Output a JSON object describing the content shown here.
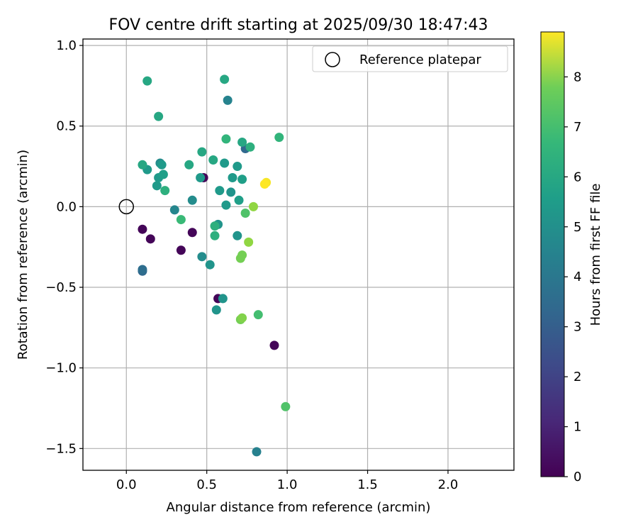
{
  "chart_data": {
    "type": "scatter",
    "title": "FOV centre drift starting at 2025/09/30 18:47:43",
    "xlabel": "Angular distance from reference (arcmin)",
    "ylabel": "Rotation from reference (arcmin)",
    "xlim": [
      -0.27,
      2.41
    ],
    "ylim": [
      -1.635,
      1.04
    ],
    "xticks": [
      0.0,
      0.5,
      1.0,
      1.5,
      2.0
    ],
    "xtick_labels": [
      "0.0",
      "0.5",
      "1.0",
      "1.5",
      "2.0"
    ],
    "yticks": [
      -1.5,
      -1.0,
      -0.5,
      0.0,
      0.5,
      1.0
    ],
    "ytick_labels": [
      "−1.5",
      "−1.0",
      "−0.5",
      "0.0",
      "0.5",
      "1.0"
    ],
    "grid": true,
    "legend": {
      "position": "top-right",
      "entries": [
        "Reference platepar"
      ]
    },
    "reference_point": {
      "x": 0.0,
      "y": 0.0,
      "label": "Reference platepar"
    },
    "colorbar": {
      "label": "Hours from first FF file",
      "colormap": "viridis",
      "range": [
        0,
        8.9
      ],
      "ticks": [
        0,
        1,
        2,
        3,
        4,
        5,
        6,
        7,
        8
      ],
      "tick_labels": [
        "0",
        "1",
        "2",
        "3",
        "4",
        "5",
        "6",
        "7",
        "8"
      ]
    },
    "points": [
      {
        "x": 0.1,
        "y": -0.14,
        "h": 0.1
      },
      {
        "x": 0.15,
        "y": -0.2,
        "h": 0.1
      },
      {
        "x": 0.34,
        "y": -0.27,
        "h": 0.1
      },
      {
        "x": 0.41,
        "y": -0.16,
        "h": 0.1
      },
      {
        "x": 0.48,
        "y": 0.18,
        "h": 0.2
      },
      {
        "x": 0.57,
        "y": -0.57,
        "h": 0.1
      },
      {
        "x": 0.92,
        "y": -0.86,
        "h": 0.1
      },
      {
        "x": 0.1,
        "y": -0.4,
        "h": 3.0
      },
      {
        "x": 0.1,
        "y": -0.39,
        "h": 3.2
      },
      {
        "x": 0.74,
        "y": 0.36,
        "h": 3.0
      },
      {
        "x": 0.63,
        "y": 0.66,
        "h": 4.0
      },
      {
        "x": 0.81,
        "y": -1.52,
        "h": 3.9
      },
      {
        "x": 0.3,
        "y": -0.02,
        "h": 4.1
      },
      {
        "x": 0.41,
        "y": 0.04,
        "h": 4.3
      },
      {
        "x": 0.47,
        "y": -0.31,
        "h": 4.3
      },
      {
        "x": 0.21,
        "y": 0.27,
        "h": 4.3
      },
      {
        "x": 0.52,
        "y": -0.36,
        "h": 4.6
      },
      {
        "x": 0.56,
        "y": -0.64,
        "h": 4.6
      },
      {
        "x": 0.6,
        "y": -0.57,
        "h": 4.6
      },
      {
        "x": 0.65,
        "y": 0.09,
        "h": 4.6
      },
      {
        "x": 0.69,
        "y": -0.18,
        "h": 4.6
      },
      {
        "x": 0.57,
        "y": -0.11,
        "h": 4.6
      },
      {
        "x": 0.22,
        "y": 0.26,
        "h": 4.8
      },
      {
        "x": 0.19,
        "y": 0.13,
        "h": 4.8
      },
      {
        "x": 0.13,
        "y": 0.23,
        "h": 4.8
      },
      {
        "x": 0.2,
        "y": 0.18,
        "h": 4.8
      },
      {
        "x": 0.61,
        "y": 0.27,
        "h": 4.8
      },
      {
        "x": 0.66,
        "y": 0.18,
        "h": 4.8
      },
      {
        "x": 0.69,
        "y": 0.25,
        "h": 4.8
      },
      {
        "x": 0.62,
        "y": 0.01,
        "h": 4.8
      },
      {
        "x": 0.58,
        "y": 0.1,
        "h": 4.8
      },
      {
        "x": 0.46,
        "y": 0.18,
        "h": 4.8
      },
      {
        "x": 0.72,
        "y": 0.17,
        "h": 5.0
      },
      {
        "x": 0.7,
        "y": 0.04,
        "h": 5.0
      },
      {
        "x": 0.23,
        "y": 0.2,
        "h": 5.0
      },
      {
        "x": 0.39,
        "y": 0.26,
        "h": 5.3
      },
      {
        "x": 0.47,
        "y": 0.34,
        "h": 5.3
      },
      {
        "x": 0.54,
        "y": 0.29,
        "h": 5.3
      },
      {
        "x": 0.1,
        "y": 0.26,
        "h": 5.3
      },
      {
        "x": 0.13,
        "y": 0.78,
        "h": 5.3
      },
      {
        "x": 0.2,
        "y": 0.56,
        "h": 5.3
      },
      {
        "x": 0.61,
        "y": 0.79,
        "h": 5.3
      },
      {
        "x": 0.72,
        "y": 0.4,
        "h": 5.3
      },
      {
        "x": 0.24,
        "y": 0.1,
        "h": 5.6
      },
      {
        "x": 0.55,
        "y": -0.12,
        "h": 5.6
      },
      {
        "x": 0.55,
        "y": -0.18,
        "h": 5.6
      },
      {
        "x": 0.77,
        "y": 0.37,
        "h": 5.6
      },
      {
        "x": 0.95,
        "y": 0.43,
        "h": 5.8
      },
      {
        "x": 0.62,
        "y": 0.42,
        "h": 5.8
      },
      {
        "x": 0.34,
        "y": -0.08,
        "h": 6.0
      },
      {
        "x": 0.82,
        "y": -0.67,
        "h": 6.2
      },
      {
        "x": 0.99,
        "y": -1.24,
        "h": 6.4
      },
      {
        "x": 0.74,
        "y": -0.04,
        "h": 6.4
      },
      {
        "x": 0.71,
        "y": -0.7,
        "h": 7.0
      },
      {
        "x": 0.72,
        "y": -0.3,
        "h": 7.0
      },
      {
        "x": 0.71,
        "y": -0.32,
        "h": 7.0
      },
      {
        "x": 0.72,
        "y": -0.69,
        "h": 7.2
      },
      {
        "x": 0.76,
        "y": -0.22,
        "h": 7.4
      },
      {
        "x": 0.79,
        "y": 0.0,
        "h": 7.4
      },
      {
        "x": 0.87,
        "y": 0.15,
        "h": 8.8
      },
      {
        "x": 0.86,
        "y": 0.14,
        "h": 8.9
      }
    ]
  }
}
